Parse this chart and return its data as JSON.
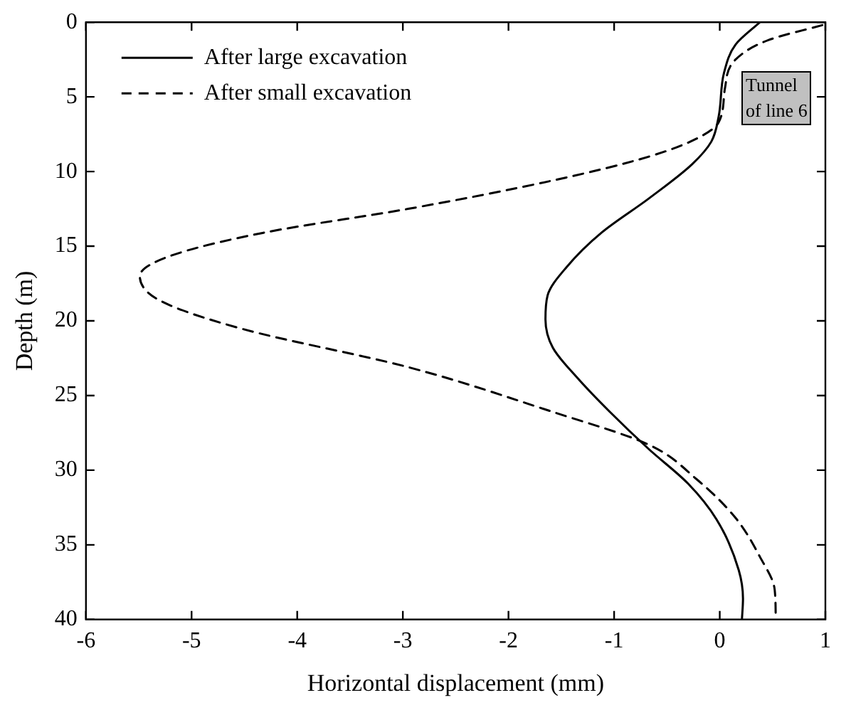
{
  "chart_data": {
    "type": "line",
    "xlabel": "Horizontal displacement (mm)",
    "ylabel": "Depth (m)",
    "xlim": [
      -6,
      1
    ],
    "xticks": [
      -6,
      -5,
      -4,
      -3,
      -2,
      -1,
      0,
      1
    ],
    "ylim": [
      40,
      0
    ],
    "yticks": [
      0,
      5,
      10,
      15,
      20,
      25,
      30,
      35,
      40
    ],
    "grid": false,
    "legend": "top left",
    "marker": "none",
    "series": [
      {
        "name": "After large excavation",
        "color": "#000000",
        "line_style": "solid",
        "x": [
          0.38,
          0.15,
          0.04,
          -0.01,
          -0.08,
          -0.26,
          -0.67,
          -1.12,
          -1.45,
          -1.63,
          -1.65,
          -1.58,
          -1.35,
          -1.04,
          -0.67,
          -0.3,
          -0.03,
          0.18,
          0.22,
          0.21
        ],
        "values": [
          0,
          1.5,
          3.4,
          6.3,
          8,
          9.5,
          11.8,
          14.1,
          16.4,
          18.3,
          19.9,
          21.8,
          23.8,
          26.1,
          28.6,
          30.9,
          33.3,
          36.7,
          38.6,
          40
        ]
      },
      {
        "name": "After small excavation",
        "color": "#000000",
        "line_style": "dashed",
        "x": [
          0.97,
          0.46,
          0.15,
          0.05,
          -0.01,
          -0.22,
          -0.67,
          -1.58,
          -2.95,
          -4.32,
          -5.22,
          -5.49,
          -5.31,
          -4.54,
          -2.95,
          -1.58,
          -0.67,
          -0.22,
          0.15,
          0.38,
          0.52,
          0.53
        ],
        "values": [
          0.2,
          1.2,
          2.5,
          4.4,
          6.7,
          7.8,
          9,
          10.6,
          12.5,
          14.1,
          15.7,
          17,
          18.6,
          20.5,
          23.1,
          26.1,
          28.3,
          30.6,
          33.2,
          35.8,
          38,
          40
        ]
      }
    ],
    "annotations": [
      "Tunnel\nof line 6"
    ]
  }
}
